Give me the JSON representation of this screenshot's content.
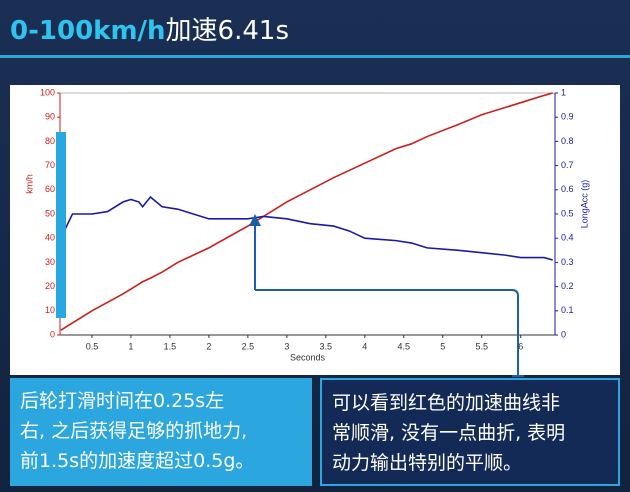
{
  "chart_data": {
    "type": "line",
    "title_highlight": "0-100km/h",
    "title_rest": "加速6.41s",
    "x_label": "Seconds",
    "y_label": "km/h",
    "y2_label": "LongAcc (g)",
    "x": [
      0.1,
      0.25,
      0.5,
      0.7,
      0.9,
      1.0,
      1.1,
      1.15,
      1.25,
      1.4,
      1.6,
      1.8,
      2.0,
      2.5,
      2.7,
      3.0,
      3.3,
      3.6,
      3.8,
      4.0,
      4.4,
      4.6,
      4.8,
      5.2,
      5.5,
      5.8,
      6.0,
      6.3,
      6.41
    ],
    "series": [
      {
        "name": "km/h",
        "color": "#cc1f1a",
        "values": [
          2,
          5,
          10,
          13.5,
          17,
          19,
          21,
          22,
          23.5,
          26,
          30,
          33,
          36,
          45,
          49,
          55,
          60,
          65,
          68,
          71,
          77,
          79,
          82,
          87,
          91,
          94,
          96,
          99,
          100
        ]
      },
      {
        "name": "LongAcc (g)",
        "color": "#1a1aa8",
        "axis": "y2",
        "values": [
          0.4,
          0.5,
          0.5,
          0.51,
          0.55,
          0.56,
          0.55,
          0.53,
          0.57,
          0.53,
          0.52,
          0.5,
          0.48,
          0.48,
          0.49,
          0.48,
          0.46,
          0.45,
          0.43,
          0.4,
          0.39,
          0.38,
          0.36,
          0.35,
          0.34,
          0.33,
          0.32,
          0.32,
          0.31
        ]
      }
    ],
    "xlim": [
      0.09,
      6.44
    ],
    "xticks": [
      0.5,
      1,
      1.5,
      2,
      2.5,
      3,
      3.5,
      4,
      4.5,
      5,
      5.5,
      6
    ],
    "ylim": [
      0,
      100
    ],
    "yticks": [
      0,
      10,
      20,
      30,
      40,
      50,
      60,
      70,
      80,
      90,
      100
    ],
    "y2lim": [
      0,
      1
    ],
    "y2ticks": [
      0,
      0.1,
      0.2,
      0.3,
      0.4,
      0.5,
      0.6,
      0.7,
      0.8,
      0.9,
      1
    ],
    "grid": false,
    "annotations": [
      [
        "后轮打滑时间在0.25s左",
        "右, 之后获得足够的抓地力,",
        "前1.5s的加速度超过0.5g。"
      ],
      [
        "可以看到红色的加速曲线非",
        "常顺滑, 没有一点曲折, 表明",
        "动力输出特别的平顺。"
      ]
    ]
  }
}
